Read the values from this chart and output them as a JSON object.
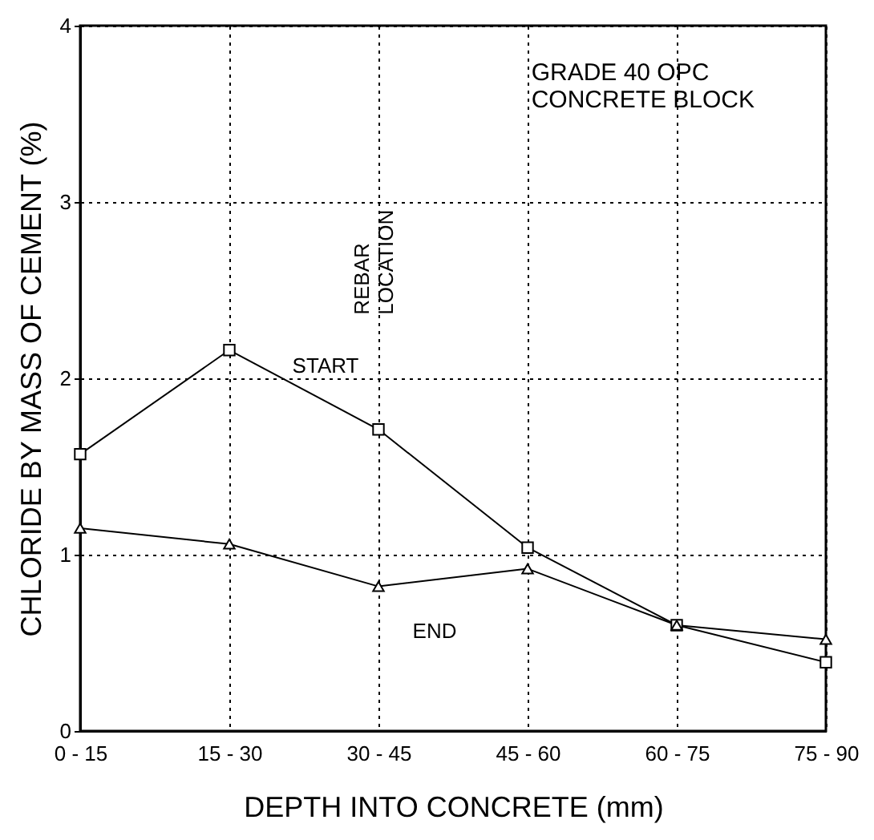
{
  "chart_data": {
    "type": "line",
    "xlabel": "DEPTH INTO CONCRETE (mm)",
    "ylabel": "CHLORIDE BY MASS OF CEMENT (%)",
    "categories": [
      "0 - 15",
      "15 - 30",
      "30 - 45",
      "45 - 60",
      "60 - 75",
      "75 - 90"
    ],
    "series": [
      {
        "name": "START",
        "color": "#000000",
        "marker": "square",
        "values": [
          1.57,
          2.16,
          1.71,
          1.04,
          0.6,
          0.39
        ]
      },
      {
        "name": "END",
        "color": "#000000",
        "marker": "triangle",
        "values": [
          1.15,
          1.06,
          0.82,
          0.92,
          0.6,
          0.52
        ]
      }
    ],
    "ylim": [
      0,
      4
    ],
    "yticks": [
      0,
      1,
      2,
      3,
      4
    ],
    "grid": true,
    "annotations": [
      "GRADE 40 OPC\nCONCRETE BLOCK",
      "REBAR\nLOCATION"
    ]
  }
}
